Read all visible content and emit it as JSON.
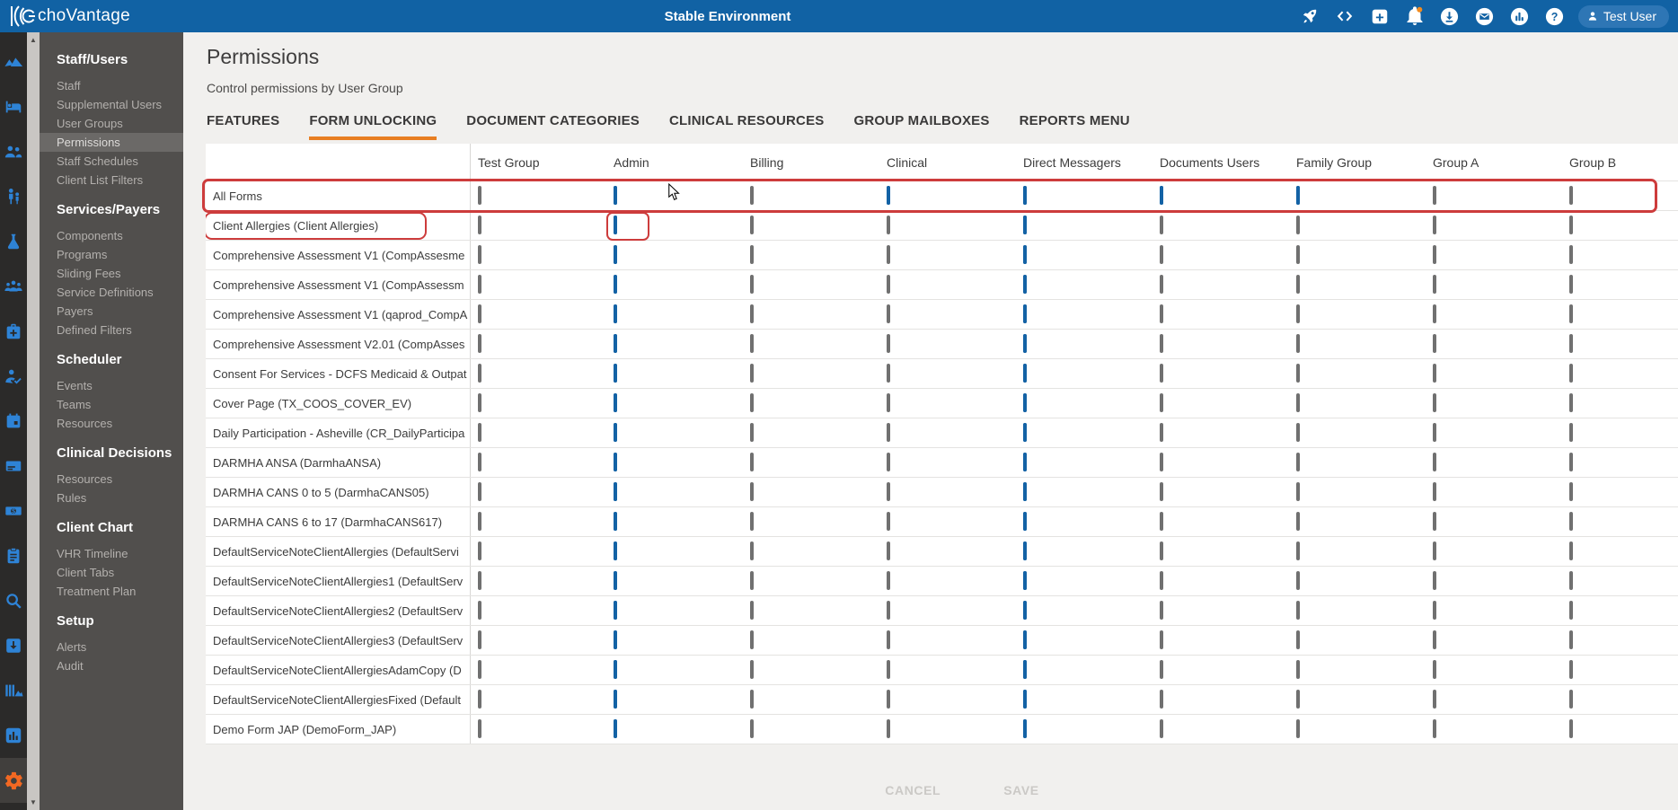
{
  "topbar": {
    "brand": "EchoVantage",
    "brand_suffix": "choVantage",
    "environment_title": "Stable Environment",
    "user_button": "Test User",
    "icons": [
      "rocket-icon",
      "code-icon",
      "calendar-add-icon",
      "notifications-icon",
      "download-icon",
      "mail-icon",
      "analytics-icon",
      "help-icon"
    ]
  },
  "sidebar": {
    "rail_icons": [
      "mountains-icon",
      "bed-icon",
      "people-icon",
      "family-icon",
      "flask-icon",
      "audience-icon",
      "medkit-icon",
      "person-check-icon",
      "calendar-icon",
      "card-icon",
      "money-icon",
      "clipboard-icon",
      "search-icon",
      "inbox-download-icon",
      "library-icon",
      "bar-chart-icon",
      "settings-gear-icon"
    ],
    "active_rail_icon": "settings-gear-icon",
    "sections": [
      {
        "header": "Staff/Users",
        "items": [
          "Staff",
          "Supplemental Users",
          "User Groups",
          "Permissions",
          "Staff Schedules",
          "Client List Filters"
        ],
        "active_item": "Permissions"
      },
      {
        "header": "Services/Payers",
        "items": [
          "Components",
          "Programs",
          "Sliding Fees",
          "Service Definitions",
          "Payers",
          "Defined Filters"
        ]
      },
      {
        "header": "Scheduler",
        "items": [
          "Events",
          "Teams",
          "Resources"
        ]
      },
      {
        "header": "Clinical Decisions",
        "items": [
          "Resources",
          "Rules"
        ]
      },
      {
        "header": "Client Chart",
        "items": [
          "VHR Timeline",
          "Client Tabs",
          "Treatment Plan"
        ]
      },
      {
        "header": "Setup",
        "items": [
          "Alerts",
          "Audit"
        ]
      }
    ]
  },
  "page": {
    "title": "Permissions",
    "subtitle": "Control permissions by User Group"
  },
  "tabs": [
    "FEATURES",
    "FORM UNLOCKING",
    "DOCUMENT CATEGORIES",
    "CLINICAL RESOURCES",
    "GROUP MAILBOXES",
    "REPORTS MENU"
  ],
  "active_tab": "FORM UNLOCKING",
  "table": {
    "group_columns": [
      "Test Group",
      "Admin",
      "Billing",
      "Clinical",
      "Direct Messagers",
      "Documents Users",
      "Family Group",
      "Group A",
      "Group B"
    ],
    "rows": [
      {
        "name": "All Forms",
        "states": [
          "unchecked",
          "indeterminate",
          "unchecked",
          "indeterminate",
          "checked",
          "indeterminate",
          "indeterminate",
          "unchecked",
          "unchecked"
        ],
        "annotation": "row-outlined"
      },
      {
        "name": "Client Allergies (Client Allergies)",
        "states": [
          "unchecked",
          "checked",
          "unchecked",
          "unchecked",
          "checked",
          "unchecked",
          "unchecked",
          "unchecked",
          "unchecked"
        ],
        "annotation": "label-and-admin-checkbox-outlined"
      },
      {
        "name": "Comprehensive Assessment V1 (CompAssesme",
        "states": [
          "unchecked",
          "checked",
          "unchecked",
          "unchecked",
          "checked",
          "unchecked",
          "unchecked",
          "unchecked",
          "unchecked"
        ]
      },
      {
        "name": "Comprehensive Assessment V1 (CompAssessm",
        "states": [
          "unchecked",
          "checked",
          "unchecked",
          "unchecked",
          "checked",
          "unchecked",
          "unchecked",
          "unchecked",
          "unchecked"
        ]
      },
      {
        "name": "Comprehensive Assessment V1 (qaprod_CompA",
        "states": [
          "unchecked",
          "checked",
          "unchecked",
          "unchecked",
          "checked",
          "unchecked",
          "unchecked",
          "unchecked",
          "unchecked"
        ]
      },
      {
        "name": "Comprehensive Assessment V2.01 (CompAsses",
        "states": [
          "unchecked",
          "checked",
          "unchecked",
          "unchecked",
          "checked",
          "unchecked",
          "unchecked",
          "unchecked",
          "unchecked"
        ]
      },
      {
        "name": "Consent For Services - DCFS Medicaid & Outpat",
        "states": [
          "unchecked",
          "checked",
          "unchecked",
          "unchecked",
          "checked",
          "unchecked",
          "unchecked",
          "unchecked",
          "unchecked"
        ]
      },
      {
        "name": "Cover Page (TX_COOS_COVER_EV)",
        "states": [
          "unchecked",
          "checked",
          "unchecked",
          "unchecked",
          "checked",
          "unchecked",
          "unchecked",
          "unchecked",
          "unchecked"
        ]
      },
      {
        "name": "Daily Participation - Asheville (CR_DailyParticipa",
        "states": [
          "unchecked",
          "checked",
          "unchecked",
          "unchecked",
          "checked",
          "unchecked",
          "unchecked",
          "unchecked",
          "unchecked"
        ]
      },
      {
        "name": "DARMHA ANSA (DarmhaANSA)",
        "states": [
          "unchecked",
          "checked",
          "unchecked",
          "unchecked",
          "checked",
          "unchecked",
          "unchecked",
          "unchecked",
          "unchecked"
        ]
      },
      {
        "name": "DARMHA CANS 0 to 5 (DarmhaCANS05)",
        "states": [
          "unchecked",
          "checked",
          "unchecked",
          "unchecked",
          "checked",
          "unchecked",
          "unchecked",
          "unchecked",
          "unchecked"
        ]
      },
      {
        "name": "DARMHA CANS 6 to 17 (DarmhaCANS617)",
        "states": [
          "unchecked",
          "checked",
          "unchecked",
          "unchecked",
          "checked",
          "unchecked",
          "unchecked",
          "unchecked",
          "unchecked"
        ]
      },
      {
        "name": "DefaultServiceNoteClientAllergies (DefaultServi",
        "states": [
          "unchecked",
          "checked",
          "unchecked",
          "unchecked",
          "checked",
          "unchecked",
          "unchecked",
          "unchecked",
          "unchecked"
        ]
      },
      {
        "name": "DefaultServiceNoteClientAllergies1 (DefaultServ",
        "states": [
          "unchecked",
          "checked",
          "unchecked",
          "unchecked",
          "checked",
          "unchecked",
          "unchecked",
          "unchecked",
          "unchecked"
        ]
      },
      {
        "name": "DefaultServiceNoteClientAllergies2 (DefaultServ",
        "states": [
          "unchecked",
          "checked",
          "unchecked",
          "unchecked",
          "checked",
          "unchecked",
          "unchecked",
          "unchecked",
          "unchecked"
        ]
      },
      {
        "name": "DefaultServiceNoteClientAllergies3 (DefaultServ",
        "states": [
          "unchecked",
          "checked",
          "unchecked",
          "unchecked",
          "checked",
          "unchecked",
          "unchecked",
          "unchecked",
          "unchecked"
        ]
      },
      {
        "name": "DefaultServiceNoteClientAllergiesAdamCopy (D",
        "states": [
          "unchecked",
          "checked",
          "unchecked",
          "unchecked",
          "checked",
          "unchecked",
          "unchecked",
          "unchecked",
          "unchecked"
        ]
      },
      {
        "name": "DefaultServiceNoteClientAllergiesFixed (Default",
        "states": [
          "unchecked",
          "checked",
          "unchecked",
          "unchecked",
          "checked",
          "unchecked",
          "unchecked",
          "unchecked",
          "unchecked"
        ]
      },
      {
        "name": "Demo Form JAP (DemoForm_JAP)",
        "states": [
          "unchecked",
          "checked",
          "unchecked",
          "unchecked",
          "checked",
          "unchecked",
          "unchecked",
          "unchecked",
          "unchecked"
        ]
      }
    ]
  },
  "footer": {
    "cancel_label": "CANCEL",
    "save_label": "SAVE"
  },
  "colors": {
    "topbar_blue": "#1162a4",
    "checkbox_blue": "#1362a5",
    "tab_accent_orange": "#e87e22",
    "annotation_red": "#cd3c3c",
    "rail_icon_blue": "#2e83d6",
    "gear_orange": "#f26822",
    "notification_badge_orange": "#f28b1f"
  }
}
